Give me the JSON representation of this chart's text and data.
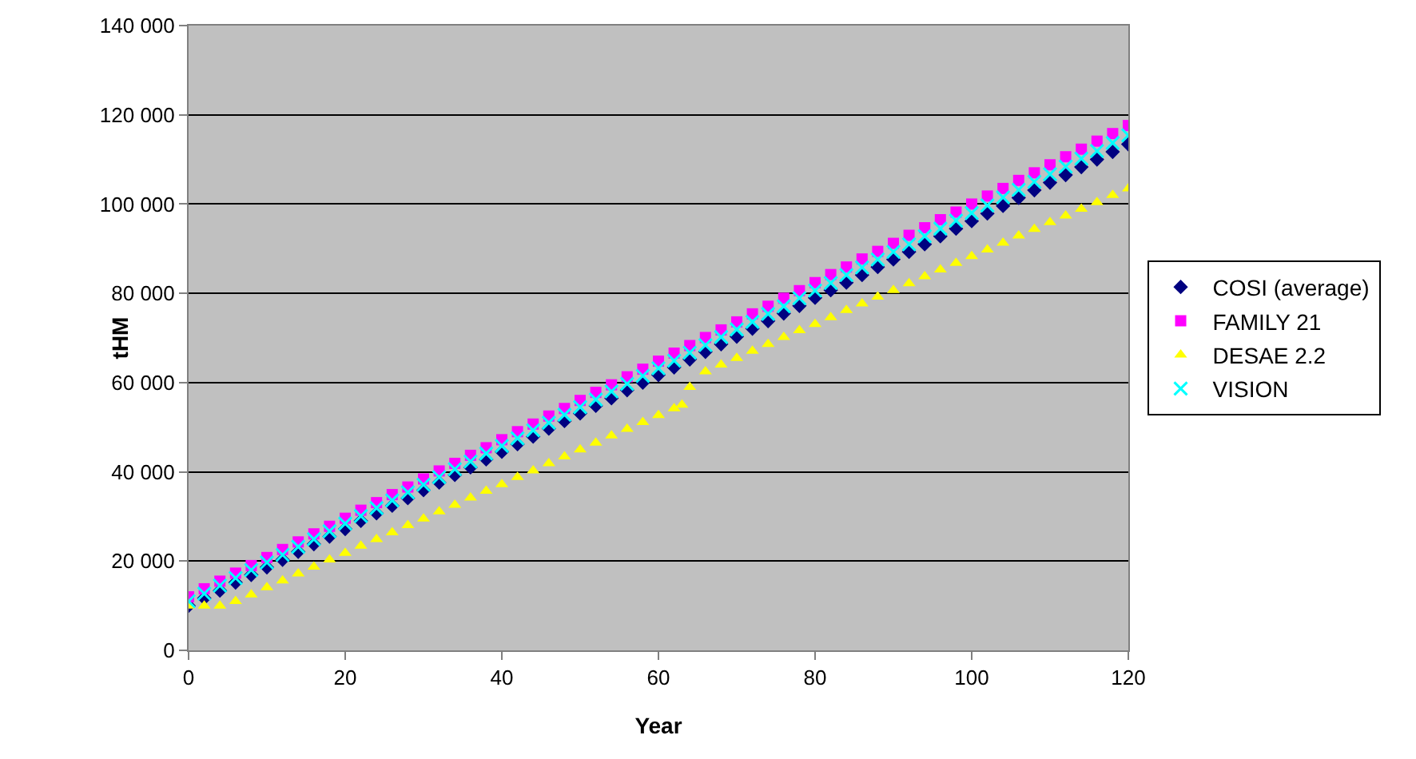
{
  "chart_data": {
    "type": "scatter",
    "xlabel": "Year",
    "ylabel": "tHM",
    "xlim": [
      0,
      120
    ],
    "xticks": [
      0,
      20,
      40,
      60,
      80,
      100,
      120
    ],
    "ylim": [
      0,
      140000
    ],
    "yticks": [
      {
        "value": 0,
        "label": "0"
      },
      {
        "value": 20000,
        "label": "20 000"
      },
      {
        "value": 40000,
        "label": "40 000"
      },
      {
        "value": 60000,
        "label": "60 000"
      },
      {
        "value": 80000,
        "label": "80 000"
      },
      {
        "value": 100000,
        "label": "100 000"
      },
      {
        "value": 120000,
        "label": "120 000"
      },
      {
        "value": 140000,
        "label": "140 000"
      }
    ],
    "grid": "y",
    "legend": "right",
    "x": [
      0,
      2,
      4,
      6,
      8,
      10,
      12,
      14,
      16,
      18,
      20,
      22,
      24,
      26,
      28,
      30,
      32,
      34,
      36,
      38,
      40,
      42,
      44,
      46,
      48,
      50,
      52,
      54,
      56,
      58,
      60,
      62,
      64,
      66,
      68,
      70,
      72,
      74,
      76,
      78,
      80,
      82,
      84,
      86,
      88,
      90,
      92,
      94,
      96,
      98,
      100,
      102,
      104,
      106,
      108,
      110,
      112,
      114,
      116,
      118,
      120
    ],
    "series": [
      {
        "name": "COSI (average)",
        "color": "#000080",
        "marker": "diamond",
        "values": [
          10000,
          11700,
          13400,
          15200,
          16900,
          18600,
          20300,
          22100,
          23800,
          25500,
          27200,
          29000,
          30700,
          32400,
          34100,
          35900,
          37600,
          39300,
          41000,
          42800,
          44500,
          46200,
          47900,
          49700,
          51400,
          53100,
          54800,
          56500,
          58300,
          60000,
          61700,
          63400,
          65200,
          66900,
          68600,
          70300,
          72100,
          73800,
          75500,
          77200,
          79000,
          80700,
          82400,
          84100,
          85900,
          87600,
          89300,
          91000,
          92800,
          94500,
          96200,
          97900,
          99600,
          101400,
          103100,
          104800,
          106500,
          108300,
          110000,
          111700,
          113400
        ]
      },
      {
        "name": "FAMILY 21",
        "color": "#ff00ff",
        "marker": "square",
        "values": [
          12000,
          13800,
          15500,
          17300,
          19000,
          20800,
          22600,
          24300,
          26100,
          27800,
          29600,
          31400,
          33100,
          34900,
          36600,
          38400,
          40200,
          41900,
          43700,
          45400,
          47200,
          49000,
          50700,
          52500,
          54200,
          56000,
          57800,
          59500,
          61300,
          63000,
          64800,
          66600,
          68300,
          70100,
          71800,
          73600,
          75400,
          77100,
          78900,
          80600,
          82400,
          84200,
          85900,
          87700,
          89400,
          91200,
          93000,
          94700,
          96500,
          98200,
          100000,
          101800,
          103500,
          105300,
          107000,
          108800,
          110600,
          112300,
          114100,
          115800,
          117600
        ]
      },
      {
        "name": "DESAE 2.2",
        "color": "#ffff00",
        "marker": "triangle",
        "x": [
          0,
          2,
          4,
          6,
          8,
          10,
          12,
          14,
          16,
          18,
          20,
          22,
          24,
          26,
          28,
          30,
          32,
          34,
          36,
          38,
          40,
          42,
          44,
          46,
          48,
          50,
          52,
          54,
          56,
          58,
          60,
          62,
          63,
          64,
          66,
          68,
          70,
          72,
          74,
          76,
          78,
          80,
          82,
          84,
          86,
          88,
          90,
          92,
          94,
          96,
          98,
          100,
          102,
          104,
          106,
          108,
          110,
          112,
          114,
          116,
          118,
          120
        ],
        "values": [
          10000,
          10000,
          10000,
          11000,
          12500,
          14100,
          15600,
          17200,
          18700,
          20300,
          21800,
          23400,
          24900,
          26400,
          28000,
          29500,
          31100,
          32600,
          34200,
          35700,
          37200,
          38800,
          40300,
          41900,
          43400,
          45000,
          46500,
          48100,
          49600,
          51100,
          52700,
          54200,
          55000,
          59000,
          62500,
          64000,
          65500,
          67100,
          68600,
          70200,
          71700,
          73100,
          74600,
          76200,
          77700,
          79200,
          80700,
          82200,
          83800,
          85300,
          86800,
          88300,
          89800,
          91300,
          92900,
          94400,
          95900,
          97400,
          98900,
          100400,
          102000,
          103500
        ]
      },
      {
        "name": "VISION",
        "color": "#00ffff",
        "marker": "cross",
        "values": [
          11000,
          12700,
          14500,
          16200,
          18000,
          19700,
          21400,
          23200,
          24900,
          26700,
          28400,
          30100,
          31900,
          33600,
          35400,
          37100,
          38800,
          40600,
          42300,
          44100,
          45800,
          47500,
          49300,
          51000,
          52800,
          54500,
          56200,
          58000,
          59700,
          61500,
          63200,
          64900,
          66700,
          68400,
          70200,
          71900,
          73600,
          75400,
          77100,
          78900,
          80600,
          82300,
          84100,
          85800,
          87600,
          89300,
          91000,
          92800,
          94500,
          96300,
          98000,
          99700,
          101500,
          103200,
          105000,
          106700,
          108400,
          110200,
          111900,
          113700,
          115400
        ]
      }
    ]
  }
}
